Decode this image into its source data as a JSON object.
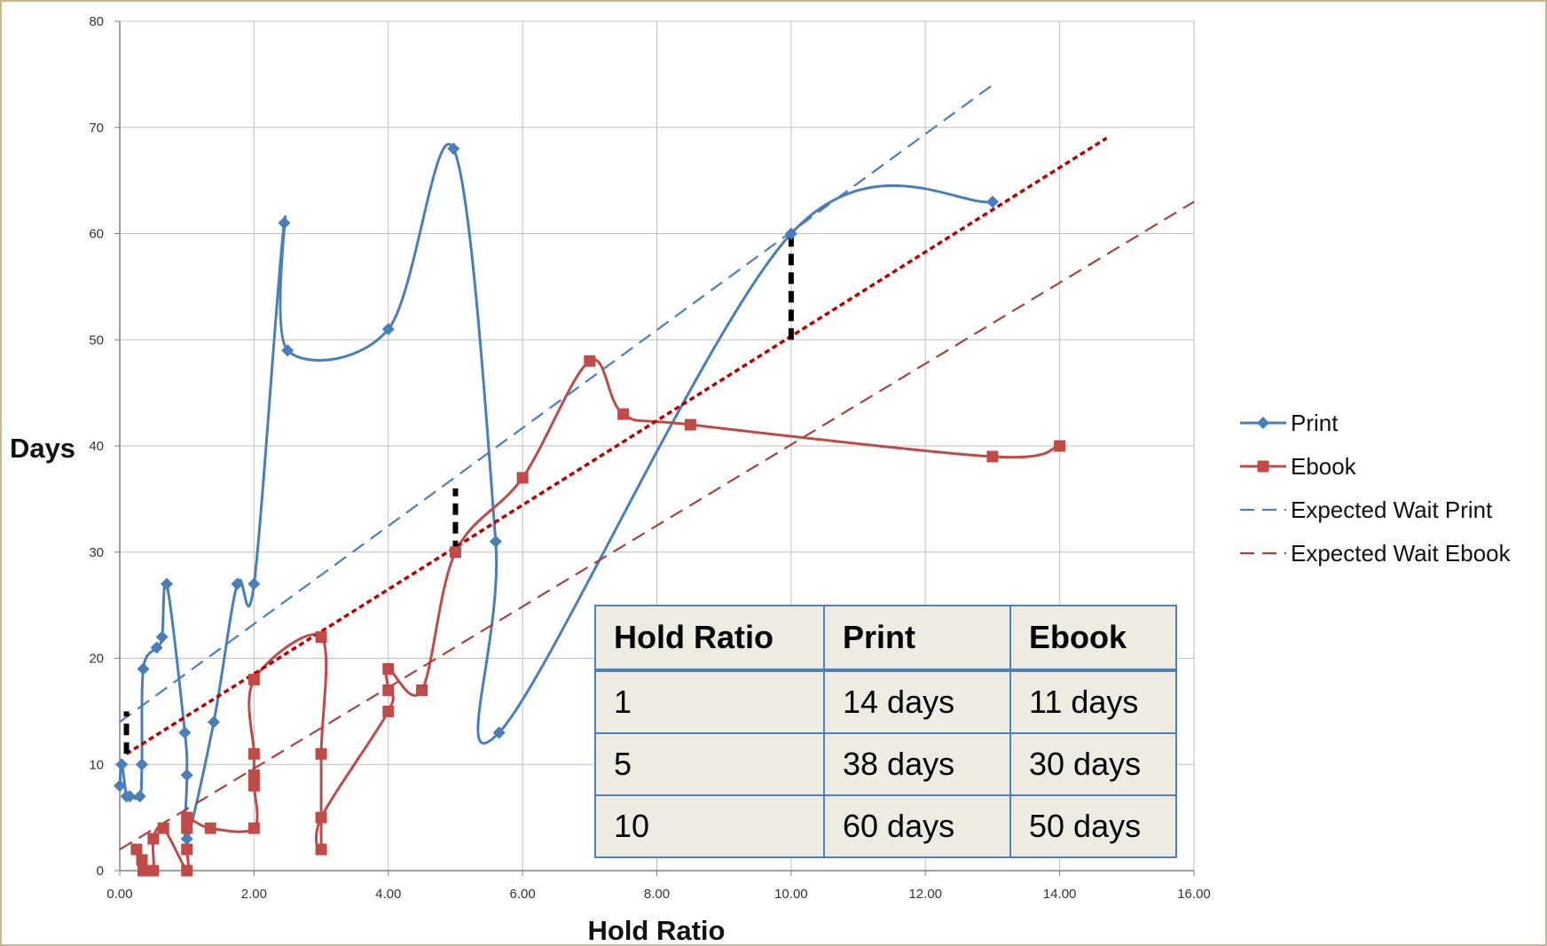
{
  "chart_data": {
    "type": "line",
    "xlabel": "Hold Ratio",
    "ylabel": "Days",
    "xlim": [
      0,
      16
    ],
    "ylim": [
      0,
      80
    ],
    "x_ticks": [
      "0.00",
      "2.00",
      "4.00",
      "6.00",
      "8.00",
      "10.00",
      "12.00",
      "14.00",
      "16.00"
    ],
    "y_ticks": [
      "0",
      "10",
      "20",
      "30",
      "40",
      "50",
      "60",
      "70",
      "80"
    ],
    "grid": true,
    "legend_position": "right",
    "series": [
      {
        "name": "Print",
        "color": "#4a7ebb",
        "style": "smooth-line-diamond-markers",
        "points": [
          [
            0.0,
            8
          ],
          [
            0.03,
            10
          ],
          [
            0.1,
            7
          ],
          [
            0.15,
            7
          ],
          [
            0.3,
            7
          ],
          [
            0.33,
            10
          ],
          [
            0.35,
            19
          ],
          [
            0.55,
            21
          ],
          [
            0.63,
            22
          ],
          [
            0.7,
            27
          ],
          [
            0.97,
            13
          ],
          [
            1.0,
            9
          ],
          [
            1.0,
            3
          ],
          [
            1.4,
            14
          ],
          [
            1.75,
            27
          ],
          [
            2.0,
            27
          ],
          [
            2.45,
            61
          ],
          [
            2.5,
            49
          ],
          [
            4.0,
            51
          ],
          [
            4.97,
            68
          ],
          [
            5.6,
            31
          ],
          [
            5.65,
            13
          ],
          [
            10.0,
            60
          ],
          [
            13.0,
            63
          ]
        ]
      },
      {
        "name": "Ebook",
        "color": "#be4b48",
        "style": "smooth-line-square-markers",
        "points": [
          [
            0.25,
            2
          ],
          [
            0.33,
            1
          ],
          [
            0.35,
            0
          ],
          [
            0.5,
            0
          ],
          [
            0.5,
            3
          ],
          [
            0.65,
            4
          ],
          [
            1.0,
            0
          ],
          [
            1.0,
            2
          ],
          [
            1.0,
            4
          ],
          [
            1.0,
            5
          ],
          [
            1.35,
            4
          ],
          [
            2.0,
            4
          ],
          [
            2.0,
            8
          ],
          [
            2.0,
            9
          ],
          [
            2.0,
            11
          ],
          [
            2.0,
            18
          ],
          [
            3.0,
            22
          ],
          [
            3.0,
            11
          ],
          [
            3.0,
            2
          ],
          [
            3.0,
            5
          ],
          [
            4.0,
            15
          ],
          [
            4.0,
            17
          ],
          [
            4.0,
            19
          ],
          [
            4.5,
            17
          ],
          [
            5.0,
            30
          ],
          [
            6.0,
            37
          ],
          [
            7.0,
            48
          ],
          [
            7.5,
            43
          ],
          [
            8.5,
            42
          ],
          [
            13.0,
            39
          ],
          [
            14.0,
            40
          ]
        ]
      },
      {
        "name": "Expected Wait Print",
        "color": "#4a7ebb",
        "style": "dashed",
        "points": [
          [
            0.0,
            14
          ],
          [
            13.0,
            74
          ]
        ]
      },
      {
        "name": "Expected Wait Ebook",
        "color": "#a9423d",
        "style": "dashed",
        "points": [
          [
            0.0,
            2
          ],
          [
            16.0,
            63
          ]
        ]
      },
      {
        "color": "#c00000",
        "style": "dotted",
        "points": [
          [
            0.1,
            11
          ],
          [
            14.7,
            69
          ]
        ]
      }
    ],
    "gap_markers": [
      {
        "x": 0.1,
        "y_from": 11,
        "y_to": 15
      },
      {
        "x": 5.0,
        "y_from": 30,
        "y_to": 36
      },
      {
        "x": 10.0,
        "y_from": 50,
        "y_to": 60
      }
    ]
  },
  "table": {
    "headers": [
      "Hold Ratio",
      "Print",
      "Ebook"
    ],
    "rows": [
      [
        "1",
        "14 days",
        "11 days"
      ],
      [
        "5",
        "38 days",
        "30 days"
      ],
      [
        "10",
        "60 days",
        "50 days"
      ]
    ]
  }
}
